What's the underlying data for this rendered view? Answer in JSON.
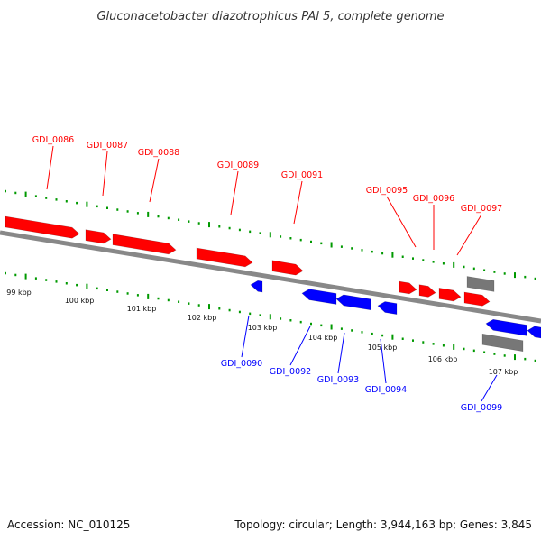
{
  "title": "Gluconacetobacter diazotrophicus PAl 5, complete genome",
  "footer": {
    "accession": "Accession: NC_010125",
    "topology": "Topology: circular; Length: 3,944,163 bp; Genes: 3,845"
  },
  "colors": {
    "forward": "#ff0000",
    "reverse": "#0000ff",
    "other": "#777777",
    "backbone": "#888888",
    "dots": "#009900"
  },
  "kbp_ticks": [
    "99 kbp",
    "100 kbp",
    "101 kbp",
    "102 kbp",
    "103 kbp",
    "104 kbp",
    "105 kbp",
    "106 kbp",
    "107 kbp"
  ],
  "genes": [
    {
      "label": "GDI_0086",
      "strand": "forward"
    },
    {
      "label": "GDI_0087",
      "strand": "forward"
    },
    {
      "label": "GDI_0088",
      "strand": "forward"
    },
    {
      "label": "GDI_0089",
      "strand": "forward"
    },
    {
      "label": "GDI_0091",
      "strand": "forward"
    },
    {
      "label": "GDI_0095",
      "strand": "forward"
    },
    {
      "label": "GDI_0096",
      "strand": "forward"
    },
    {
      "label": "GDI_0097",
      "strand": "forward"
    },
    {
      "label": "GDI_0090",
      "strand": "reverse"
    },
    {
      "label": "GDI_0092",
      "strand": "reverse"
    },
    {
      "label": "GDI_0093",
      "strand": "reverse"
    },
    {
      "label": "GDI_0094",
      "strand": "reverse"
    },
    {
      "label": "GDI_0099",
      "strand": "reverse"
    }
  ]
}
